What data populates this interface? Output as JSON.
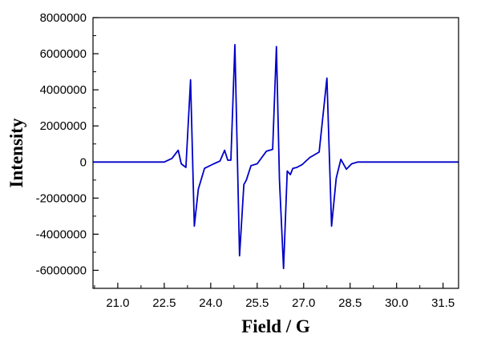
{
  "chart_data": {
    "type": "line",
    "title": "",
    "xlabel": "Field / G",
    "ylabel": "Intensity",
    "xlim": [
      20.2,
      32.0
    ],
    "ylim": [
      -7000000,
      8000000
    ],
    "grid": false,
    "legend": "none",
    "x_ticks": [
      21.0,
      22.5,
      24.0,
      25.5,
      27.0,
      28.5,
      30.0,
      31.5
    ],
    "x_tick_labels": [
      "21.0",
      "22.5",
      "24.0",
      "25.5",
      "27.0",
      "28.5",
      "30.0",
      "31.5"
    ],
    "y_ticks": [
      -6000000,
      -4000000,
      -2000000,
      0,
      2000000,
      4000000,
      6000000,
      8000000
    ],
    "y_tick_labels": [
      "-6000000",
      "-4000000",
      "-2000000",
      "0",
      "2000000",
      "4000000",
      "6000000",
      "8000000"
    ],
    "series": [
      {
        "color": "#0000c8",
        "x": [
          20.2,
          22.3,
          22.5,
          22.75,
          22.95,
          23.05,
          23.2,
          23.35,
          23.47,
          23.6,
          23.8,
          24.1,
          24.3,
          24.45,
          24.55,
          24.65,
          24.78,
          24.93,
          25.07,
          25.15,
          25.3,
          25.5,
          25.8,
          26.0,
          26.12,
          26.22,
          26.35,
          26.47,
          26.57,
          26.65,
          26.78,
          26.95,
          27.2,
          27.5,
          27.75,
          27.9,
          28.05,
          28.2,
          28.38,
          28.55,
          28.75,
          29.0,
          30.0,
          31.0,
          32.0
        ],
        "y": [
          0,
          0,
          0,
          200000,
          650000,
          -100000,
          -300000,
          4550000,
          -3550000,
          -1500000,
          -350000,
          -100000,
          50000,
          650000,
          100000,
          100000,
          6500000,
          -5200000,
          -1250000,
          -1000000,
          -200000,
          -100000,
          600000,
          700000,
          6400000,
          -1000000,
          -5900000,
          -500000,
          -700000,
          -350000,
          -300000,
          -150000,
          250000,
          550000,
          4650000,
          -3550000,
          -900000,
          150000,
          -400000,
          -100000,
          0,
          0,
          0,
          0,
          0
        ]
      }
    ]
  }
}
